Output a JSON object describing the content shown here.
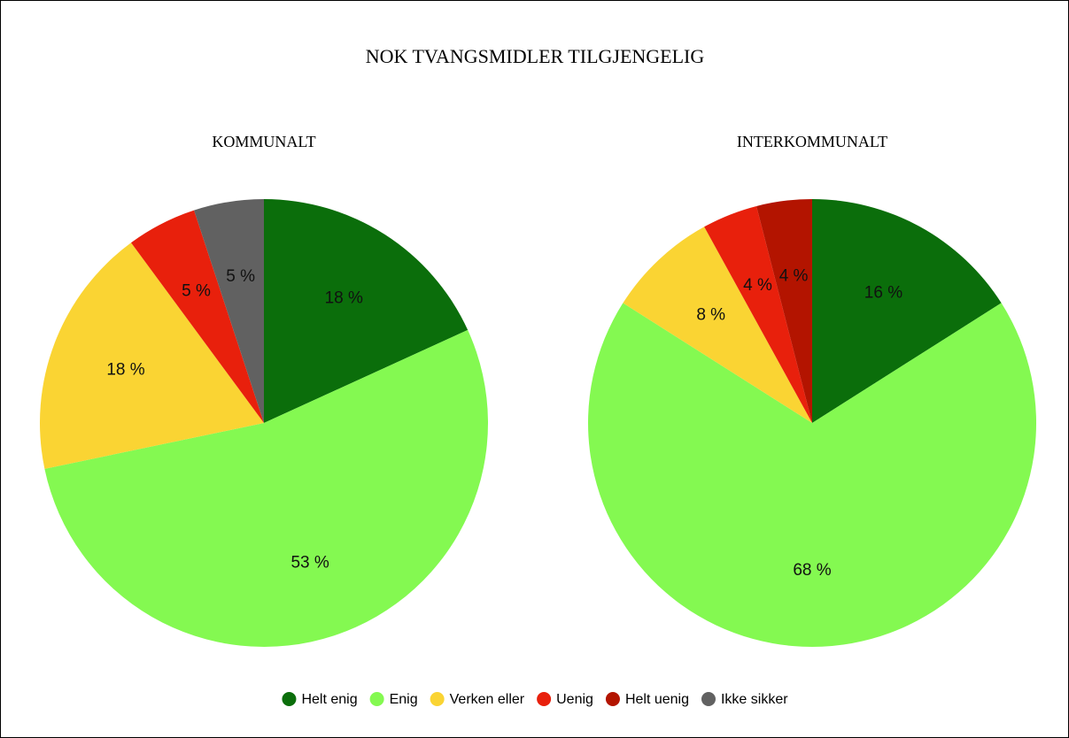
{
  "title": "NOK TVANGSMIDLER TILGJENGELIG",
  "chart_data": [
    {
      "type": "pie",
      "title": "KOMMUNALT",
      "categories": [
        "Helt enig",
        "Enig",
        "Verken eller",
        "Uenig",
        "Helt uenig",
        "Ikke sikker"
      ],
      "values": [
        18,
        53,
        18,
        5,
        0,
        5
      ],
      "value_labels": [
        "18 %",
        "53 %",
        "18 %",
        "5 %",
        null,
        "5 %"
      ],
      "colors": [
        "#0b6e0b",
        "#84f951",
        "#fad433",
        "#e8200c",
        "#b31400",
        "#616161"
      ]
    },
    {
      "type": "pie",
      "title": "INTERKOMMUNALT",
      "categories": [
        "Helt enig",
        "Enig",
        "Verken eller",
        "Uenig",
        "Helt uenig",
        "Ikke sikker"
      ],
      "values": [
        16,
        68,
        8,
        4,
        4,
        0
      ],
      "value_labels": [
        "16 %",
        "68 %",
        "8 %",
        "4 %",
        "4 %",
        null
      ],
      "colors": [
        "#0b6e0b",
        "#84f951",
        "#fad433",
        "#e8200c",
        "#b31400",
        "#616161"
      ]
    }
  ]
}
